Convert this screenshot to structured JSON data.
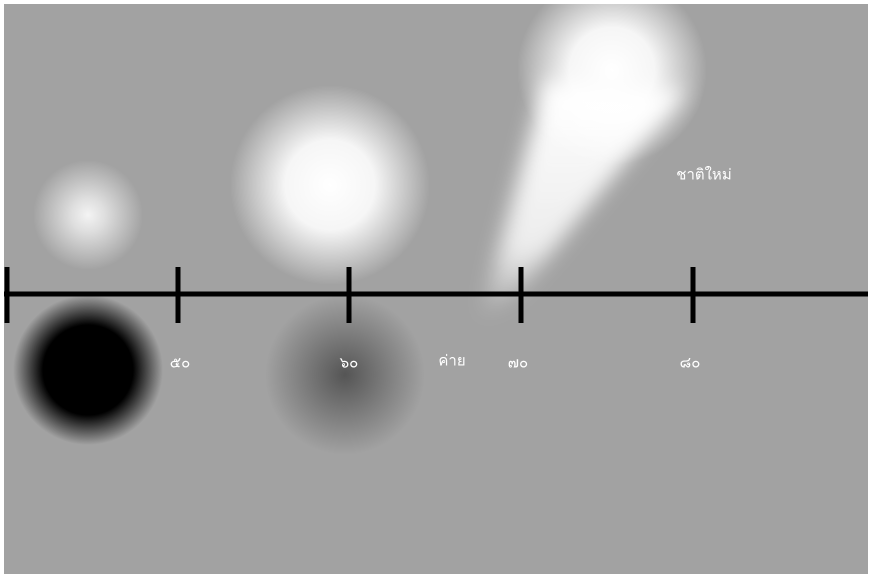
{
  "axis_labels": [
    "๕๐",
    "๖๐",
    "๗๐",
    "๘๐"
  ],
  "annotations": [
    "ค่าย",
    "ชาติใหม่"
  ]
}
